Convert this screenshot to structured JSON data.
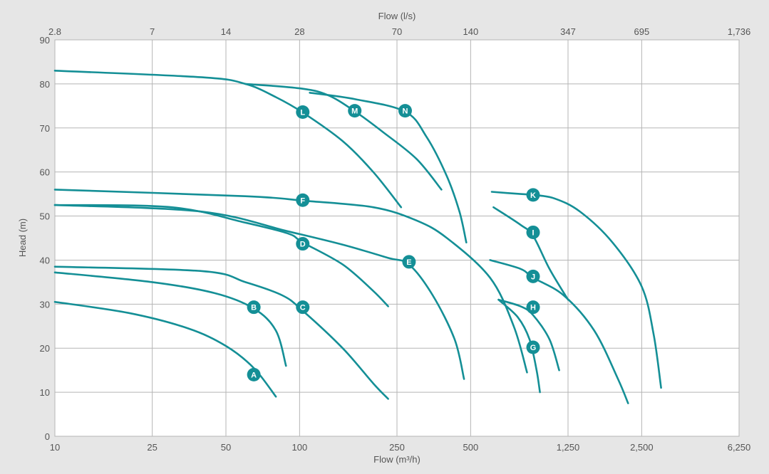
{
  "chart_data": {
    "type": "line",
    "title": "",
    "xlabel": "Flow (m³/h)",
    "x2label": "Flow (l/s)",
    "ylabel": "Head (m)",
    "xscale": "log",
    "xlim": [
      10,
      6250
    ],
    "ylim": [
      0,
      90
    ],
    "grid": true,
    "colors": {
      "curve": "#148f96",
      "grid": "#b5b5b5",
      "plot_bg": "#ffffff",
      "page_bg": "#e6e6e6"
    },
    "x_ticks": [
      {
        "value": 10,
        "label": "10"
      },
      {
        "value": 25,
        "label": "25"
      },
      {
        "value": 50,
        "label": "50"
      },
      {
        "value": 100,
        "label": "100"
      },
      {
        "value": 250,
        "label": "250"
      },
      {
        "value": 500,
        "label": "500"
      },
      {
        "value": 1250,
        "label": "1,250"
      },
      {
        "value": 2500,
        "label": "2,500"
      },
      {
        "value": 6250,
        "label": "6,250"
      }
    ],
    "x2_ticks": [
      "2.8",
      "7",
      "14",
      "28",
      "70",
      "140",
      "347",
      "695",
      "1,736"
    ],
    "y_ticks": [
      0,
      10,
      20,
      30,
      40,
      50,
      60,
      70,
      80,
      90
    ],
    "series": [
      {
        "name": "A",
        "label_at": [
          65,
          14
        ],
        "points": [
          [
            10,
            30.5
          ],
          [
            20,
            28
          ],
          [
            35,
            24.5
          ],
          [
            50,
            20.5
          ],
          [
            65,
            15.5
          ],
          [
            80,
            9
          ]
        ]
      },
      {
        "name": "B",
        "label_at": [
          65,
          29.3
        ],
        "points": [
          [
            10,
            37.2
          ],
          [
            25,
            35
          ],
          [
            45,
            32.5
          ],
          [
            65,
            29
          ],
          [
            80,
            24
          ],
          [
            88,
            16
          ]
        ]
      },
      {
        "name": "C",
        "label_at": [
          103,
          29.3
        ],
        "points": [
          [
            10,
            38.5
          ],
          [
            40,
            37.5
          ],
          [
            60,
            35
          ],
          [
            85,
            32
          ],
          [
            103,
            28.5
          ],
          [
            150,
            20
          ],
          [
            200,
            12
          ],
          [
            230,
            8.5
          ]
        ]
      },
      {
        "name": "D",
        "label_at": [
          103,
          43.7
        ],
        "points": [
          [
            10,
            52.5
          ],
          [
            30,
            52
          ],
          [
            60,
            48.5
          ],
          [
            90,
            46
          ],
          [
            103,
            44
          ],
          [
            150,
            39
          ],
          [
            200,
            33
          ],
          [
            230,
            29.5
          ]
        ]
      },
      {
        "name": "E",
        "label_at": [
          280,
          39.6
        ],
        "points": [
          [
            10,
            52.5
          ],
          [
            40,
            51
          ],
          [
            90,
            46.5
          ],
          [
            150,
            43.5
          ],
          [
            230,
            40.5
          ],
          [
            280,
            39
          ],
          [
            350,
            32
          ],
          [
            430,
            22
          ],
          [
            470,
            13
          ]
        ]
      },
      {
        "name": "F",
        "label_at": [
          103,
          53.6
        ],
        "points": [
          [
            10,
            56
          ],
          [
            60,
            54.5
          ],
          [
            103,
            53.5
          ],
          [
            200,
            52
          ],
          [
            300,
            49
          ],
          [
            400,
            45
          ],
          [
            600,
            36
          ],
          [
            750,
            25
          ],
          [
            850,
            14.5
          ]
        ]
      },
      {
        "name": "G",
        "label_at": [
          900,
          20.2
        ],
        "points": [
          [
            650,
            31
          ],
          [
            780,
            27
          ],
          [
            870,
            22
          ],
          [
            930,
            15
          ],
          [
            960,
            10
          ]
        ]
      },
      {
        "name": "H",
        "label_at": [
          900,
          29.3
        ],
        "points": [
          [
            650,
            31
          ],
          [
            800,
            29.5
          ],
          [
            900,
            27.5
          ],
          [
            1050,
            22
          ],
          [
            1150,
            15
          ]
        ]
      },
      {
        "name": "I",
        "label_at": [
          900,
          46.3
        ],
        "points": [
          [
            620,
            52
          ],
          [
            800,
            48
          ],
          [
            900,
            45.5
          ],
          [
            1050,
            38
          ],
          [
            1250,
            31
          ]
        ]
      },
      {
        "name": "J",
        "label_at": [
          900,
          36.3
        ],
        "points": [
          [
            600,
            40
          ],
          [
            800,
            38
          ],
          [
            900,
            36
          ],
          [
            1200,
            32
          ],
          [
            1600,
            24
          ],
          [
            2000,
            13
          ],
          [
            2200,
            7.5
          ]
        ]
      },
      {
        "name": "K",
        "label_at": [
          900,
          54.8
        ],
        "points": [
          [
            610,
            55.5
          ],
          [
            800,
            55
          ],
          [
            900,
            54.8
          ],
          [
            1100,
            54
          ],
          [
            1400,
            51
          ],
          [
            1900,
            44
          ],
          [
            2500,
            34
          ],
          [
            2800,
            23
          ],
          [
            3000,
            11
          ]
        ]
      },
      {
        "name": "L",
        "label_at": [
          103,
          73.6
        ],
        "points": [
          [
            10,
            83
          ],
          [
            40,
            81.5
          ],
          [
            60,
            80
          ],
          [
            80,
            77
          ],
          [
            103,
            73.5
          ],
          [
            150,
            67
          ],
          [
            200,
            60
          ],
          [
            260,
            52
          ]
        ]
      },
      {
        "name": "M",
        "label_at": [
          168,
          73.9
        ],
        "points": [
          [
            60,
            80
          ],
          [
            100,
            79
          ],
          [
            130,
            77.5
          ],
          [
            168,
            73.8
          ],
          [
            220,
            69
          ],
          [
            300,
            63
          ],
          [
            380,
            56
          ]
        ]
      },
      {
        "name": "N",
        "label_at": [
          270,
          73.9
        ],
        "points": [
          [
            110,
            78
          ],
          [
            170,
            76.5
          ],
          [
            270,
            73.7
          ],
          [
            330,
            68
          ],
          [
            400,
            59
          ],
          [
            450,
            51
          ],
          [
            480,
            44
          ]
        ]
      }
    ]
  }
}
